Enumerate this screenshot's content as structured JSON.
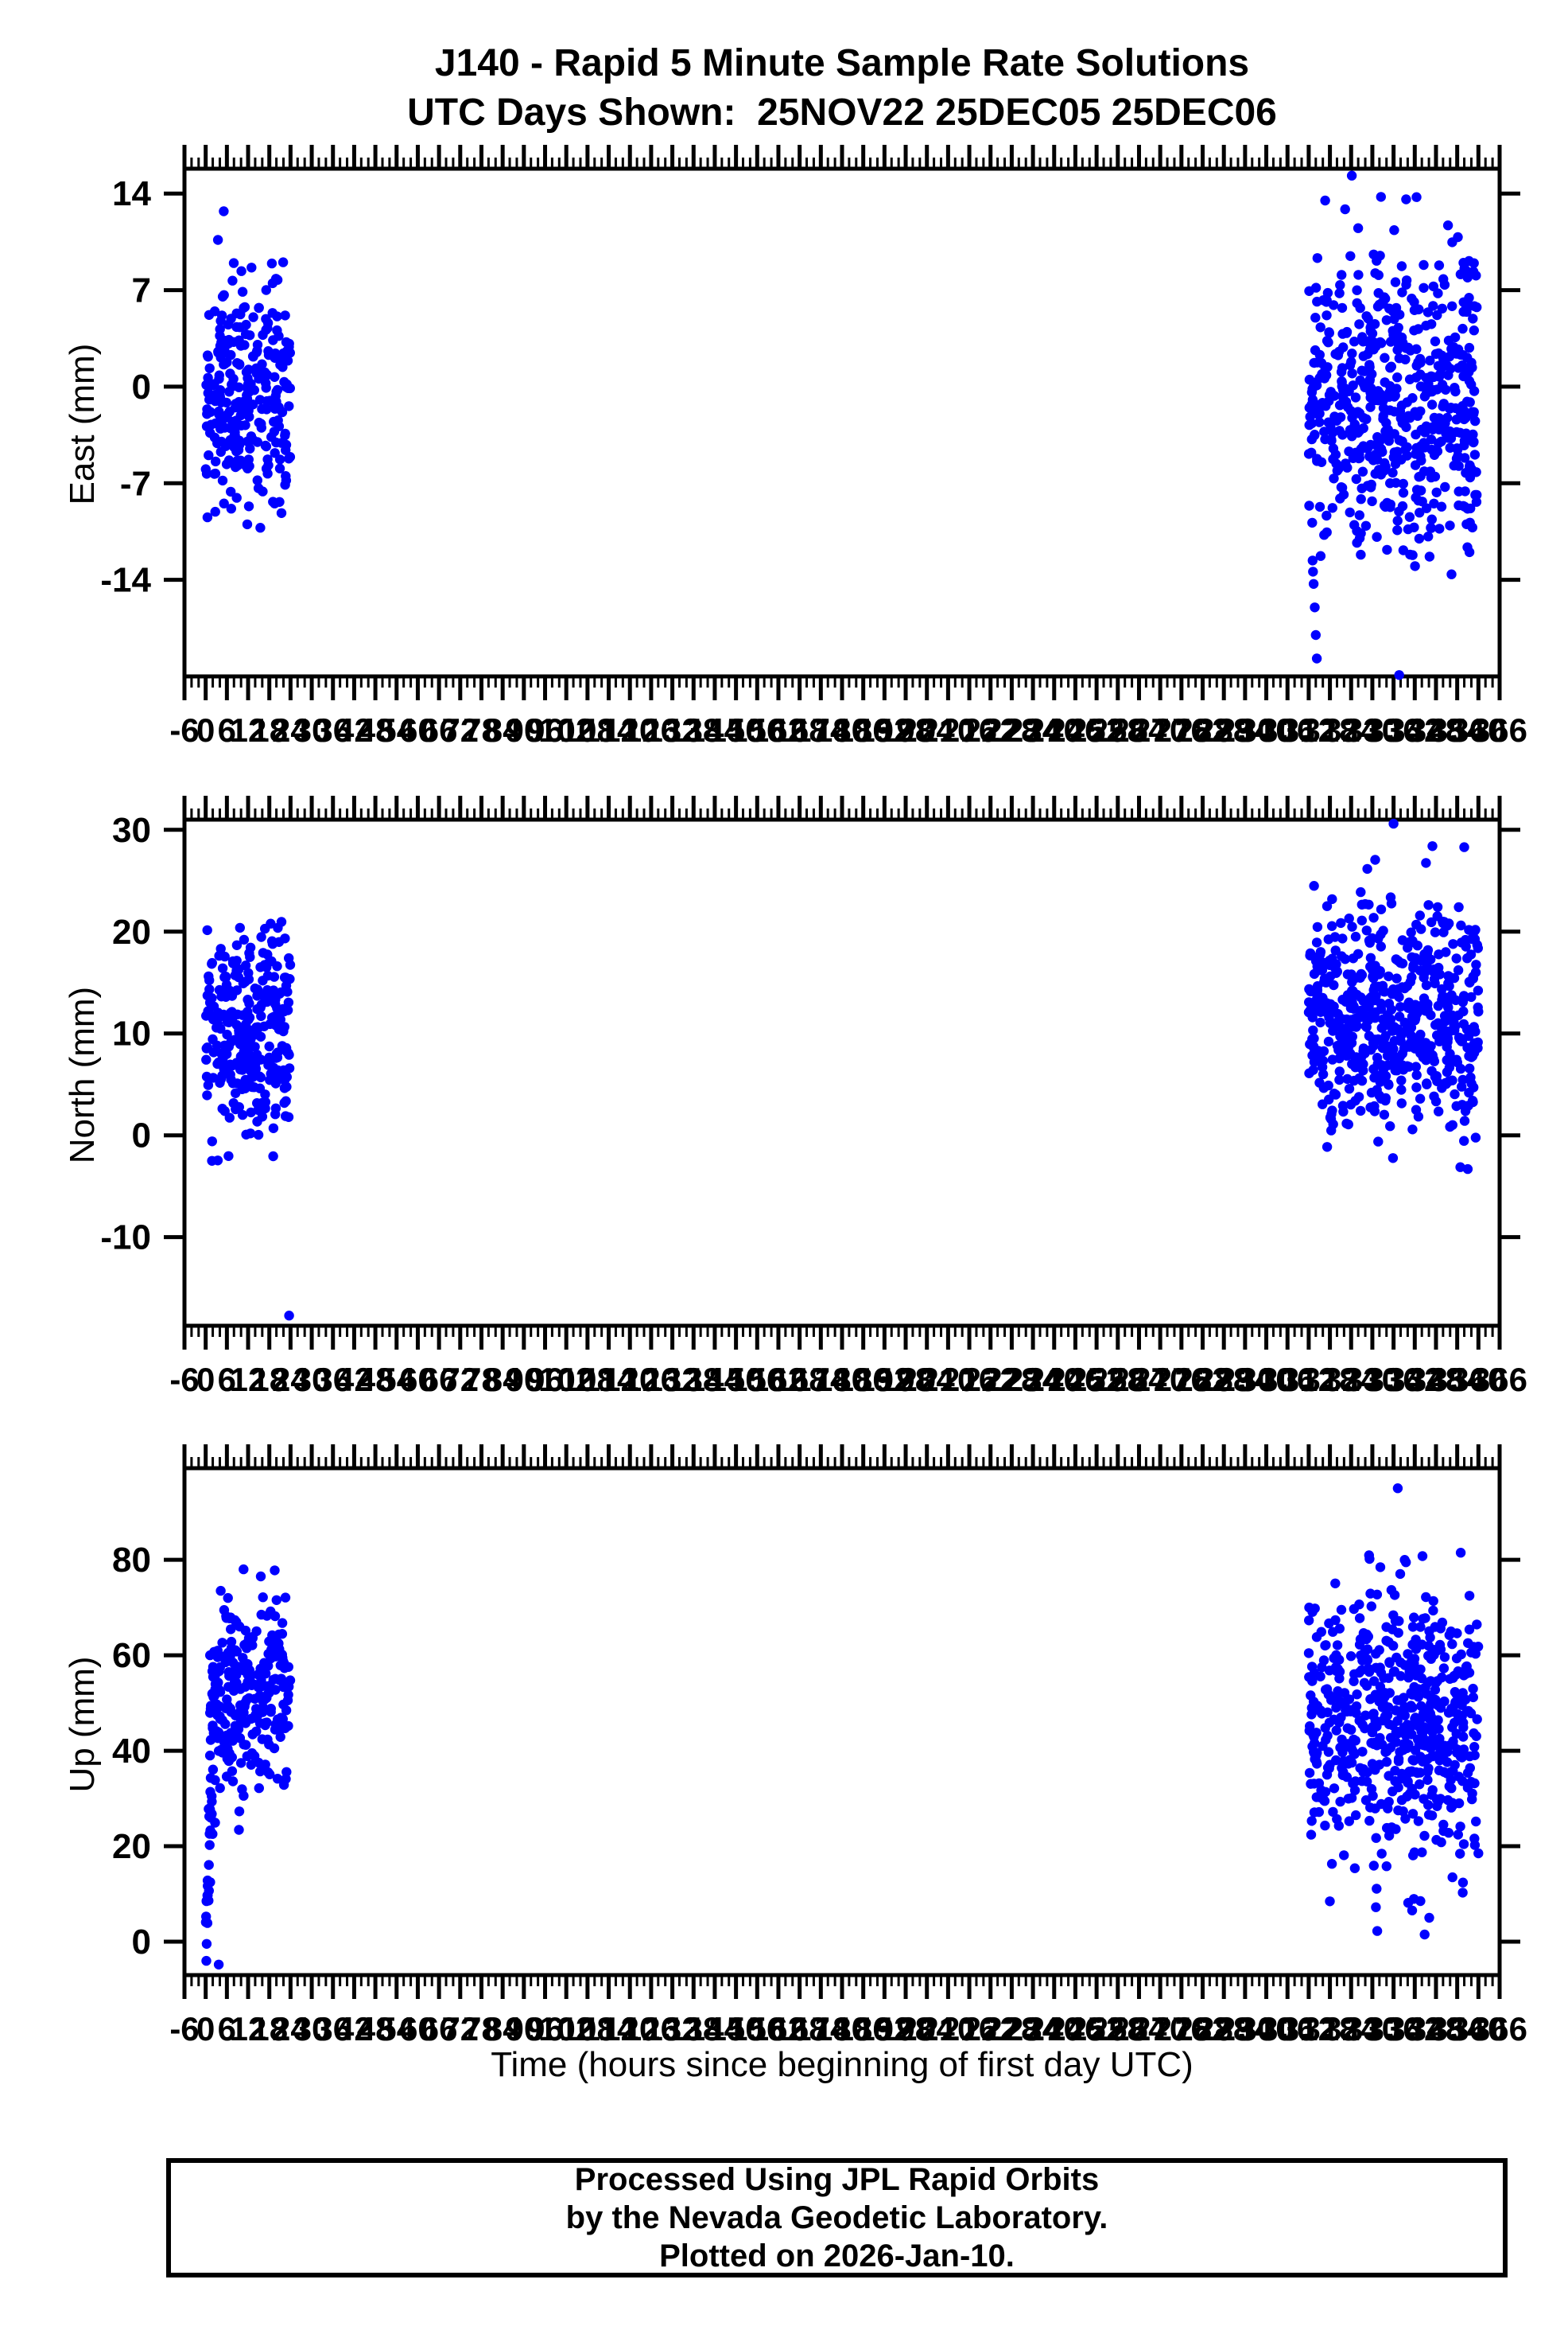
{
  "title": {
    "line1": "J140 - Rapid 5 Minute Sample Rate Solutions",
    "line2": "UTC Days Shown:  25NOV22 25DEC05 25DEC06"
  },
  "station": "J140",
  "footer": {
    "lines": [
      "Processed Using JPL Rapid Orbits",
      "by the Nevada Geodetic Laboratory.",
      "Plotted on 2026-Jan-10."
    ]
  },
  "xaxis": {
    "title": "Time (hours since beginning of first day UTC)",
    "min": -6,
    "max": 366,
    "major_step": 6,
    "minor_step": 2
  },
  "colors": {
    "points": "#0000ff",
    "frame": "#000000",
    "background": "#ffffff"
  },
  "chart_data": {
    "type": "scatter",
    "title": "J140 - Rapid 5 Minute Sample Rate Solutions",
    "subtitle": "UTC Days Shown:  25NOV22 25DEC05 25DEC06",
    "xlabel": "Time (hours since beginning of first day UTC)",
    "x_range": [
      -6,
      366
    ],
    "x_major_tick": 6,
    "x_minor_tick": 2,
    "days_shown": [
      "25NOV22",
      "25DEC05",
      "25DEC06"
    ],
    "day_hour_windows": [
      [
        0,
        24
      ],
      [
        312,
        336
      ],
      [
        336,
        360
      ]
    ],
    "sample_rate_minutes": 5,
    "point_color": "#0000ff",
    "grid": false,
    "legend": null,
    "subplots": [
      {
        "name": "East",
        "ylabel": "East (mm)",
        "ylim": [
          -21.0,
          15.8
        ],
        "yticks": [
          14,
          7,
          0,
          -7,
          -14
        ],
        "clusters": [
          {
            "t": [
              0,
              24
            ],
            "n": 288,
            "mean": -0.8,
            "sd": 4.3,
            "clip": [
              -10.8,
              13.3
            ]
          },
          {
            "t": [
              312,
              360
            ],
            "n": 576,
            "mean": -1.2,
            "sd": 5.5,
            "clip": [
              -13.8,
              14.3
            ]
          }
        ],
        "outliers": [
          [
            313.1,
            -12.6
          ],
          [
            313.4,
            -14.3
          ],
          [
            313.7,
            -16.0
          ],
          [
            314.0,
            -18.0
          ],
          [
            314.3,
            -19.7
          ],
          [
            337.6,
            -20.9
          ],
          [
            324.2,
            15.3
          ],
          [
            352.4,
            -13.6
          ]
        ]
      },
      {
        "name": "North",
        "ylabel": "North (mm)",
        "ylim": [
          -18.7,
          31.0
        ],
        "yticks": [
          30,
          20,
          10,
          0,
          -10
        ],
        "clusters": [
          {
            "t": [
              0,
              24
            ],
            "n": 288,
            "mean": 9.5,
            "sd": 5.2,
            "clip": [
              -4.6,
              23.0
            ]
          },
          {
            "t": [
              312,
              360
            ],
            "n": 576,
            "mean": 11.5,
            "sd": 5.4,
            "clip": [
              -3.8,
              27.3
            ]
          }
        ],
        "outliers": [
          [
            23.6,
            -17.7
          ],
          [
            336.0,
            30.6
          ],
          [
            347.0,
            28.4
          ],
          [
            356.0,
            28.3
          ],
          [
            313.5,
            24.5
          ]
        ]
      },
      {
        "name": "Up",
        "ylabel": "Up (mm)",
        "ylim": [
          -7.0,
          99.2
        ],
        "yticks": [
          80,
          60,
          40,
          20,
          0
        ],
        "clusters": [
          {
            "t": [
              0,
              2.2
            ],
            "n": 34,
            "ramp": [
              -2,
              40
            ],
            "sd": 7.0,
            "clip": [
              -5.0,
              46.0
            ]
          },
          {
            "t": [
              1.2,
              24
            ],
            "n": 256,
            "mean": 52.0,
            "sd": 10.5,
            "clip": [
              19.0,
              83.0
            ]
          },
          {
            "t": [
              312,
              360
            ],
            "n": 576,
            "mean": 45.0,
            "sd": 13.5,
            "clip": [
              0.5,
              82.0
            ]
          }
        ],
        "outliers": [
          [
            337.2,
            95.0
          ],
          [
            339.5,
            79.5
          ],
          [
            344.8,
            1.5
          ],
          [
            346.1,
            5.0
          ],
          [
            343.6,
            8.5
          ],
          [
            355.0,
            81.5
          ],
          [
            3.7,
            -4.8
          ]
        ]
      }
    ]
  }
}
